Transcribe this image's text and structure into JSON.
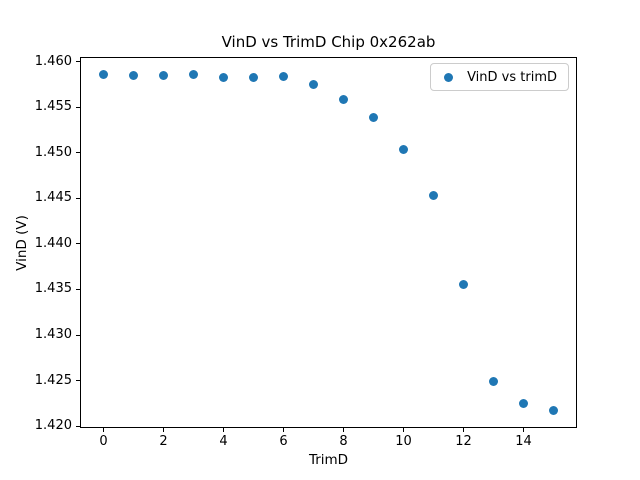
{
  "chart_data": {
    "type": "scatter",
    "title": "VinD vs TrimD Chip 0x262ab",
    "xlabel": "TrimD",
    "ylabel": "VinD (V)",
    "legend": {
      "position": "upper right",
      "entries": [
        {
          "label": "VinD vs trimD",
          "marker": "circle-icon"
        }
      ]
    },
    "x": [
      0,
      1,
      2,
      3,
      4,
      5,
      6,
      7,
      8,
      9,
      10,
      11,
      12,
      13,
      14,
      15
    ],
    "y": [
      1.4586,
      1.4585,
      1.4585,
      1.4586,
      1.4583,
      1.4583,
      1.4584,
      1.4575,
      1.4558,
      1.4539,
      1.4504,
      1.4453,
      1.4355,
      1.4249,
      1.4225,
      1.4217
    ],
    "xlim": [
      -0.75,
      15.75
    ],
    "ylim": [
      1.4199,
      1.4604
    ],
    "xticks": [
      0,
      2,
      4,
      6,
      8,
      10,
      12,
      14
    ],
    "xtick_labels": [
      "0",
      "2",
      "4",
      "6",
      "8",
      "10",
      "12",
      "14"
    ],
    "yticks": [
      1.42,
      1.425,
      1.43,
      1.435,
      1.44,
      1.445,
      1.45,
      1.455,
      1.46
    ],
    "ytick_labels": [
      "1.420",
      "1.425",
      "1.430",
      "1.435",
      "1.440",
      "1.445",
      "1.450",
      "1.455",
      "1.460"
    ],
    "grid": false,
    "colors": {
      "marker": "#1f77b4",
      "frame": "#000000",
      "text": "#000000",
      "background": "#ffffff",
      "legend_border": "#cccccc"
    }
  }
}
